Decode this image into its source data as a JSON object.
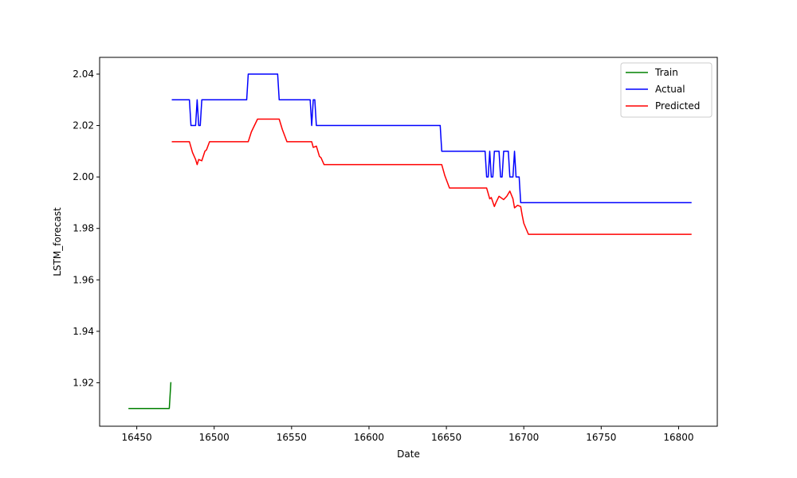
{
  "chart_data": {
    "type": "line",
    "title": "",
    "xlabel": "Date",
    "ylabel": "LSTM_forecast",
    "xlim": [
      16426,
      16825
    ],
    "ylim": [
      1.9031,
      2.0465
    ],
    "x_ticks": [
      16450,
      16500,
      16550,
      16600,
      16650,
      16700,
      16750,
      16800
    ],
    "x_tick_labels": [
      "16450",
      "16500",
      "16550",
      "16600",
      "16650",
      "16700",
      "16750",
      "16800"
    ],
    "y_ticks": [
      1.92,
      1.94,
      1.96,
      1.98,
      2.0,
      2.02,
      2.04
    ],
    "y_tick_labels": [
      "1.92",
      "1.94",
      "1.96",
      "1.98",
      "2.00",
      "2.02",
      "2.04"
    ],
    "grid": false,
    "legend": "top-right",
    "series": [
      {
        "name": "Train",
        "color": "#008000",
        "points": [
          [
            16445,
            1.91
          ],
          [
            16471,
            1.91
          ],
          [
            16472,
            1.92
          ]
        ]
      },
      {
        "name": "Actual",
        "color": "#0000ff",
        "points": [
          [
            16473,
            2.03
          ],
          [
            16484,
            2.03
          ],
          [
            16485,
            2.02
          ],
          [
            16488,
            2.02
          ],
          [
            16489,
            2.03
          ],
          [
            16490,
            2.02
          ],
          [
            16491,
            2.02
          ],
          [
            16492,
            2.03
          ],
          [
            16521,
            2.03
          ],
          [
            16522,
            2.04
          ],
          [
            16541,
            2.04
          ],
          [
            16542,
            2.03
          ],
          [
            16562,
            2.03
          ],
          [
            16563,
            2.02
          ],
          [
            16564,
            2.03
          ],
          [
            16565,
            2.03
          ],
          [
            16566,
            2.02
          ],
          [
            16646,
            2.02
          ],
          [
            16647,
            2.01
          ],
          [
            16675,
            2.01
          ],
          [
            16676,
            2.0
          ],
          [
            16677,
            2.0
          ],
          [
            16678,
            2.01
          ],
          [
            16679,
            2.0
          ],
          [
            16680,
            2.0
          ],
          [
            16681,
            2.01
          ],
          [
            16684,
            2.01
          ],
          [
            16685,
            2.0
          ],
          [
            16686,
            2.0
          ],
          [
            16687,
            2.01
          ],
          [
            16690,
            2.01
          ],
          [
            16691,
            2.0
          ],
          [
            16693,
            2.0
          ],
          [
            16694,
            2.01
          ],
          [
            16695,
            2.0
          ],
          [
            16697,
            2.0
          ],
          [
            16698,
            1.99
          ],
          [
            16808,
            1.99
          ]
        ]
      },
      {
        "name": "Predicted",
        "color": "#ff0000",
        "points": [
          [
            16473,
            2.0137
          ],
          [
            16484,
            2.0137
          ],
          [
            16486,
            2.0095
          ],
          [
            16488,
            2.0068
          ],
          [
            16489,
            2.0048
          ],
          [
            16490,
            2.0068
          ],
          [
            16492,
            2.0063
          ],
          [
            16494,
            2.01
          ],
          [
            16495,
            2.0105
          ],
          [
            16497,
            2.0137
          ],
          [
            16522,
            2.0137
          ],
          [
            16524,
            2.0175
          ],
          [
            16528,
            2.0225
          ],
          [
            16542,
            2.0225
          ],
          [
            16544,
            2.0185
          ],
          [
            16547,
            2.0137
          ],
          [
            16563,
            2.0137
          ],
          [
            16564,
            2.0115
          ],
          [
            16566,
            2.012
          ],
          [
            16568,
            2.008
          ],
          [
            16569,
            2.0075
          ],
          [
            16571,
            2.0048
          ],
          [
            16647,
            2.0048
          ],
          [
            16649,
            2.0005
          ],
          [
            16652,
            1.9957
          ],
          [
            16676,
            1.9957
          ],
          [
            16678,
            1.9915
          ],
          [
            16679,
            1.992
          ],
          [
            16681,
            1.9885
          ],
          [
            16682,
            1.99
          ],
          [
            16684,
            1.9925
          ],
          [
            16687,
            1.9912
          ],
          [
            16689,
            1.9925
          ],
          [
            16691,
            1.9945
          ],
          [
            16693,
            1.9915
          ],
          [
            16694,
            1.988
          ],
          [
            16696,
            1.989
          ],
          [
            16698,
            1.9885
          ],
          [
            16699,
            1.985
          ],
          [
            16700,
            1.982
          ],
          [
            16703,
            1.9777
          ],
          [
            16808,
            1.9777
          ]
        ]
      }
    ]
  }
}
